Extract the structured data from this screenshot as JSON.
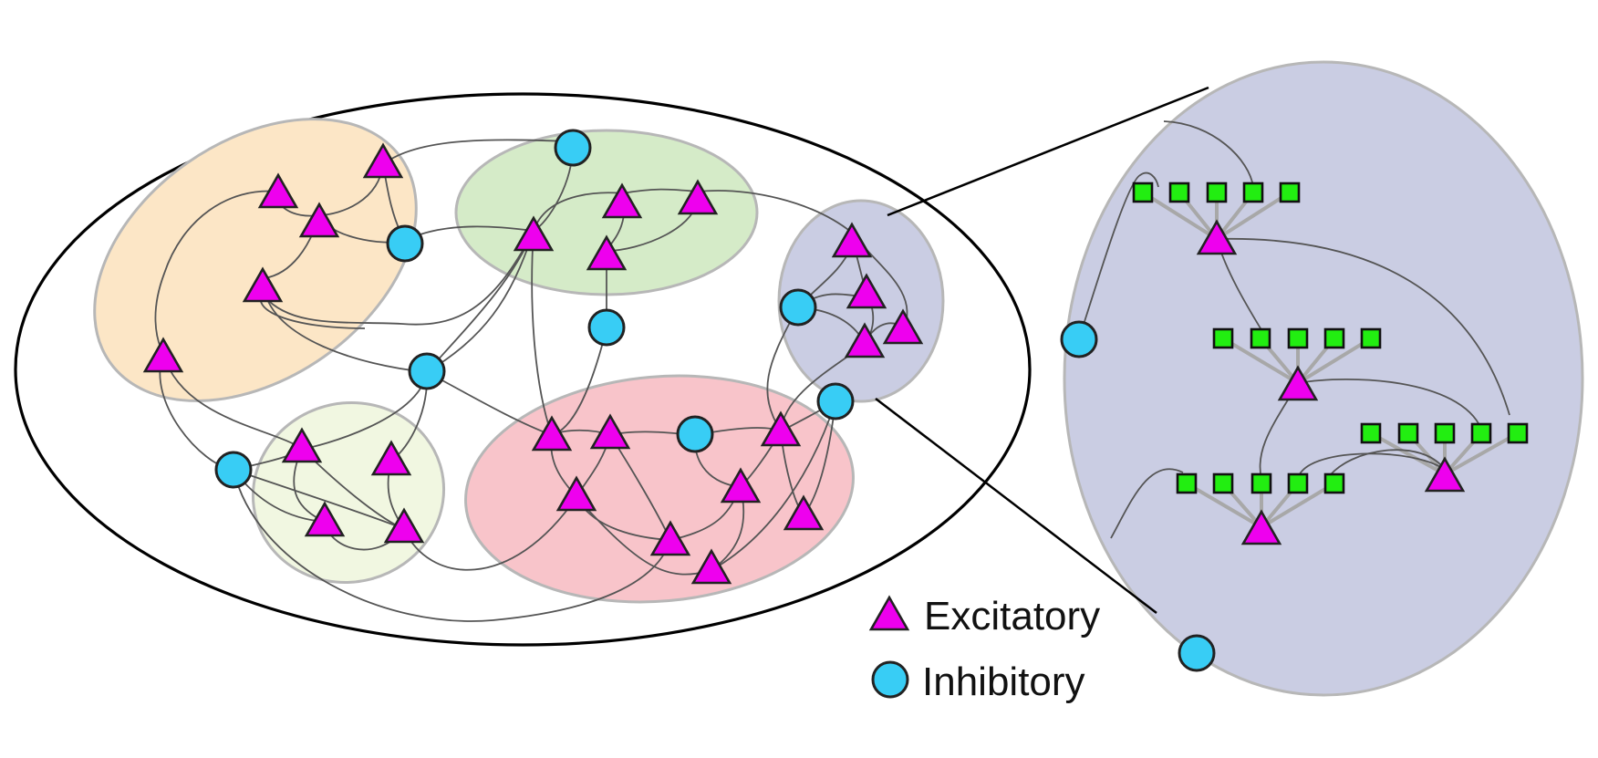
{
  "legend": {
    "excitatory_label": "Excitatory",
    "inhibitory_label": "Inhibitory"
  },
  "colors": {
    "excitatory": "#ee00ee",
    "inhibitory": "#38cdf5",
    "synapse": "#22ee11",
    "cluster_orange": "#fce6c6",
    "cluster_green": "#d5ebc8",
    "cluster_lightgreen": "#f1f7e1",
    "cluster_pink": "#f8c4ca",
    "cluster_lavender": "#cacde3"
  }
}
